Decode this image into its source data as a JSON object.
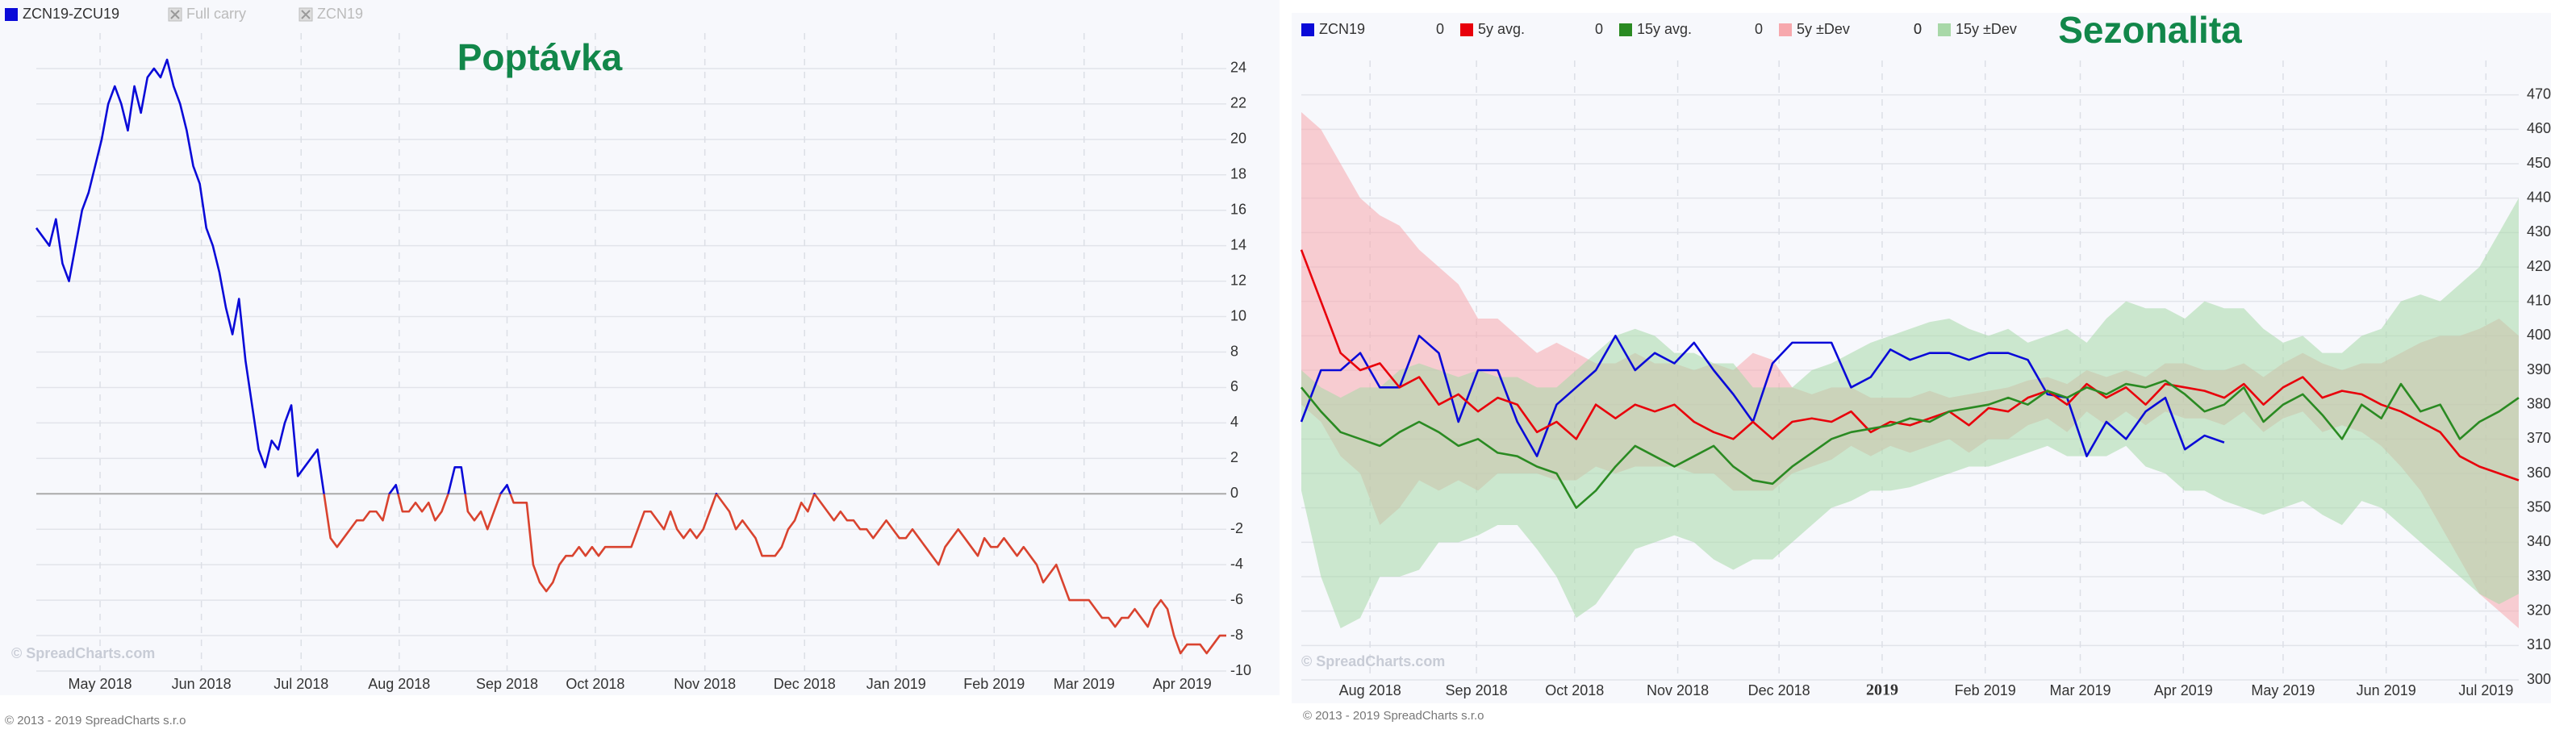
{
  "chart_data": [
    {
      "type": "line",
      "title": "Poptávka",
      "series": [
        {
          "name": "ZCN19-ZCU19",
          "color": "#0a0ad8",
          "negative_color": "#d9432f",
          "values": [
            15,
            14.5,
            14,
            15.5,
            13,
            12,
            14,
            16,
            17,
            18.5,
            20,
            22,
            23,
            22,
            20.5,
            23,
            21.5,
            23.5,
            24,
            23.5,
            24.5,
            23,
            22,
            20.5,
            18.5,
            17.5,
            15,
            14,
            12.5,
            10.5,
            9,
            11,
            7.5,
            5,
            2.5,
            1.5,
            3,
            2.5,
            4,
            5,
            1,
            1.5,
            2,
            2.5,
            0,
            -2.5,
            -3,
            -2.5,
            -2,
            -1.5,
            -1.5,
            -1,
            -1,
            -1.5,
            0,
            0.5,
            -1,
            -1,
            -0.5,
            -1,
            -0.5,
            -1.5,
            -1,
            0,
            1.5,
            1.5,
            -1,
            -1.5,
            -1,
            -2,
            -1,
            0,
            0.5,
            -0.5,
            -0.5,
            -0.5,
            -4,
            -5,
            -5.5,
            -5,
            -4,
            -3.5,
            -3.5,
            -3,
            -3.5,
            -3,
            -3.5,
            -3,
            -3,
            -3,
            -3,
            -3,
            -2,
            -1,
            -1,
            -1.5,
            -2,
            -1,
            -2,
            -2.5,
            -2,
            -2.5,
            -2,
            -1,
            0,
            -0.5,
            -1,
            -2,
            -1.5,
            -2,
            -2.5,
            -3.5,
            -3.5,
            -3.5,
            -3,
            -2,
            -1.5,
            -0.5,
            -1,
            0,
            -0.5,
            -1,
            -1.5,
            -1,
            -1.5,
            -1.5,
            -2,
            -2,
            -2.5,
            -2,
            -1.5,
            -2,
            -2.5,
            -2.5,
            -2,
            -2.5,
            -3,
            -3.5,
            -4,
            -3,
            -2.5,
            -2,
            -2.5,
            -3,
            -3.5,
            -2.5,
            -3,
            -3,
            -2.5,
            -3,
            -3.5,
            -3,
            -3.5,
            -4,
            -5,
            -4.5,
            -4,
            -5,
            -6,
            -6,
            -6,
            -6,
            -6.5,
            -7,
            -7,
            -7.5,
            -7,
            -7,
            -6.5,
            -7,
            -7.5,
            -6.5,
            -6,
            -6.5,
            -8,
            -9,
            -8.5,
            -8.5,
            -8.5,
            -9,
            -8.5,
            -8,
            -8
          ]
        },
        {
          "name": "Full carry",
          "visible": false
        },
        {
          "name": "ZCN19",
          "visible": false
        }
      ],
      "xlim": [
        0,
        182
      ],
      "xticks": [
        {
          "value": 9.75,
          "label": "May 2018"
        },
        {
          "value": 25.25,
          "label": "Jun 2018"
        },
        {
          "value": 40.5,
          "label": "Jul 2018"
        },
        {
          "value": 55.5,
          "label": "Aug 2018"
        },
        {
          "value": 72,
          "label": "Sep 2018"
        },
        {
          "value": 85.5,
          "label": "Oct 2018"
        },
        {
          "value": 102.25,
          "label": "Nov 2018"
        },
        {
          "value": 117.5,
          "label": "Dec 2018"
        },
        {
          "value": 131.5,
          "label": "Jan 2019"
        },
        {
          "value": 146.5,
          "label": "Feb 2019"
        },
        {
          "value": 160.25,
          "label": "Mar 2019"
        },
        {
          "value": 175.25,
          "label": "Apr 2019"
        }
      ],
      "ylim": [
        -10,
        26
      ],
      "yticks": [
        -10,
        -8,
        -6,
        -4,
        -2,
        0,
        2,
        4,
        6,
        8,
        10,
        12,
        14,
        16,
        18,
        20,
        22,
        24
      ],
      "grid": true,
      "watermark": "© SpreadCharts.com",
      "footer": "© 2013 - 2019 SpreadCharts s.r.o"
    },
    {
      "type": "line",
      "title": "Sezonalita",
      "series": [
        {
          "name": "ZCN19",
          "color": "#0a0ad8",
          "legend_value": 0,
          "values": [
            375,
            390,
            390,
            395,
            385,
            385,
            400,
            395,
            375,
            390,
            390,
            375,
            365,
            380,
            385,
            390,
            400,
            390,
            395,
            392,
            398,
            390,
            383,
            375,
            392,
            398,
            398,
            398,
            385,
            388,
            396,
            393,
            395,
            395,
            393,
            395,
            395,
            393,
            383,
            382,
            365,
            375,
            370,
            378,
            382,
            367,
            371,
            369,
            null,
            null,
            null,
            null,
            null,
            null,
            null,
            null,
            null,
            null,
            null,
            null,
            null,
            null,
            null
          ]
        },
        {
          "name": "5y avg.",
          "color": "#e8000b",
          "legend_value": 0,
          "values": [
            425,
            410,
            395,
            390,
            392,
            385,
            388,
            380,
            383,
            378,
            382,
            380,
            372,
            375,
            370,
            380,
            376,
            380,
            378,
            380,
            375,
            372,
            370,
            375,
            370,
            375,
            376,
            375,
            378,
            372,
            375,
            374,
            376,
            378,
            374,
            379,
            378,
            382,
            384,
            380,
            386,
            382,
            385,
            380,
            386,
            385,
            384,
            382,
            386,
            380,
            385,
            388,
            382,
            384,
            383,
            380,
            378,
            375,
            372,
            365,
            362,
            360,
            358
          ]
        },
        {
          "name": "15y avg.",
          "color": "#2a8a22",
          "legend_value": 0,
          "values": [
            385,
            378,
            372,
            370,
            368,
            372,
            375,
            372,
            368,
            370,
            366,
            365,
            362,
            360,
            350,
            355,
            362,
            368,
            365,
            362,
            365,
            368,
            362,
            358,
            357,
            362,
            366,
            370,
            372,
            373,
            374,
            376,
            375,
            378,
            379,
            380,
            382,
            380,
            384,
            382,
            385,
            383,
            386,
            385,
            387,
            383,
            378,
            380,
            385,
            375,
            380,
            383,
            377,
            370,
            380,
            376,
            386,
            378,
            380,
            370,
            375,
            378,
            382
          ]
        },
        {
          "name": "5y ±Dev",
          "color": "#f7a8ad",
          "style": "band",
          "legend_value": 0,
          "high": [
            465,
            460,
            450,
            440,
            435,
            432,
            425,
            420,
            415,
            405,
            405,
            400,
            395,
            398,
            395,
            392,
            392,
            395,
            392,
            392,
            390,
            392,
            390,
            395,
            393,
            385,
            383,
            385,
            385,
            382,
            382,
            382,
            384,
            382,
            383,
            384,
            385,
            387,
            388,
            386,
            390,
            388,
            390,
            388,
            392,
            392,
            390,
            390,
            392,
            388,
            392,
            395,
            392,
            390,
            392,
            392,
            395,
            398,
            400,
            400,
            402,
            405,
            400
          ],
          "low": [
            380,
            375,
            365,
            360,
            345,
            350,
            358,
            355,
            358,
            355,
            360,
            360,
            360,
            358,
            358,
            362,
            360,
            362,
            362,
            362,
            360,
            360,
            355,
            355,
            355,
            360,
            362,
            364,
            368,
            365,
            368,
            366,
            368,
            370,
            366,
            370,
            370,
            374,
            376,
            372,
            378,
            374,
            378,
            374,
            378,
            376,
            376,
            374,
            378,
            372,
            376,
            378,
            372,
            374,
            372,
            368,
            362,
            355,
            345,
            335,
            325,
            320,
            315
          ]
        },
        {
          "name": "15y ±Dev",
          "color": "#a8d8a8",
          "style": "band",
          "legend_value": 0,
          "high": [
            390,
            385,
            382,
            385,
            385,
            390,
            392,
            390,
            388,
            390,
            388,
            388,
            385,
            385,
            390,
            395,
            400,
            402,
            400,
            395,
            395,
            392,
            392,
            385,
            385,
            385,
            390,
            392,
            395,
            398,
            400,
            402,
            404,
            405,
            402,
            400,
            402,
            398,
            400,
            402,
            398,
            405,
            410,
            408,
            408,
            405,
            410,
            408,
            408,
            402,
            398,
            400,
            395,
            395,
            400,
            402,
            410,
            412,
            410,
            415,
            420,
            430,
            440
          ],
          "low": [
            355,
            330,
            315,
            318,
            330,
            330,
            332,
            340,
            340,
            342,
            345,
            345,
            338,
            330,
            318,
            322,
            330,
            338,
            340,
            342,
            340,
            335,
            332,
            335,
            335,
            340,
            345,
            350,
            352,
            355,
            355,
            356,
            358,
            360,
            362,
            362,
            364,
            366,
            368,
            365,
            365,
            365,
            368,
            362,
            360,
            355,
            355,
            352,
            350,
            348,
            350,
            352,
            348,
            345,
            352,
            350,
            345,
            340,
            335,
            330,
            325,
            322,
            325
          ]
        }
      ],
      "xlim": [
        0,
        62
      ],
      "xticks": [
        {
          "value": 3.5,
          "label": "Aug 2018"
        },
        {
          "value": 8.92,
          "label": "Sep 2018"
        },
        {
          "value": 13.92,
          "label": "Oct 2018"
        },
        {
          "value": 19.17,
          "label": "Nov 2018"
        },
        {
          "value": 24.33,
          "label": "Dec 2018"
        },
        {
          "value": 29.58,
          "label": "2019",
          "bold": true
        },
        {
          "value": 34.83,
          "label": "Feb 2019"
        },
        {
          "value": 39.67,
          "label": "Mar 2019"
        },
        {
          "value": 44.92,
          "label": "Apr 2019"
        },
        {
          "value": 50,
          "label": "May 2019"
        },
        {
          "value": 55.25,
          "label": "Jun 2019"
        },
        {
          "value": 60.33,
          "label": "Jul 2019"
        }
      ],
      "ylim": [
        300,
        480
      ],
      "yticks": [
        300,
        310,
        320,
        330,
        340,
        350,
        360,
        370,
        380,
        390,
        400,
        410,
        420,
        430,
        440,
        450,
        460,
        470
      ],
      "grid": true,
      "watermark": "© SpreadCharts.com",
      "footer": "© 2013 - 2019 SpreadCharts s.r.o"
    }
  ]
}
